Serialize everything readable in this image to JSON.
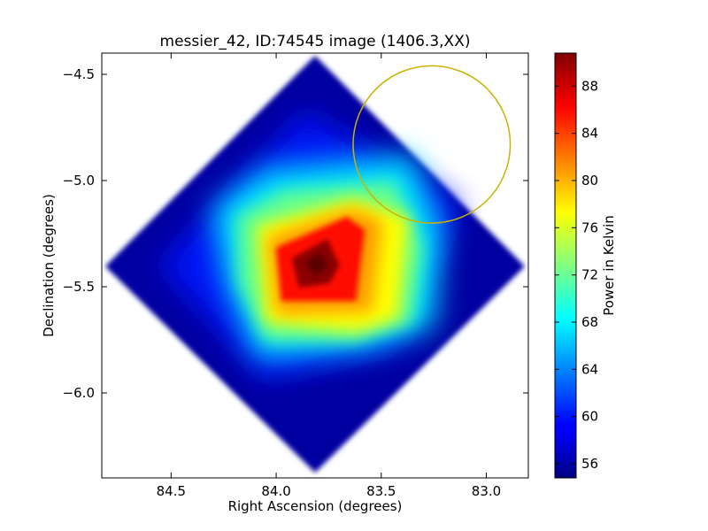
{
  "chart_data": {
    "type": "heatmap",
    "title": "messier_42, ID:74545 image (1406.3,XX)",
    "xlabel": "Right Ascension (degrees)",
    "ylabel": "Declination (degrees)",
    "xlim": [
      84.83,
      82.8
    ],
    "ylim": [
      -6.4,
      -4.4
    ],
    "x_ticks": [
      84.5,
      84.0,
      83.5,
      83.0
    ],
    "x_tick_labels": [
      "84.5",
      "84.0",
      "83.5",
      "83.0"
    ],
    "y_ticks": [
      -4.5,
      -5.0,
      -5.5,
      -6.0
    ],
    "y_tick_labels": [
      "−4.5",
      "−5.0",
      "−5.5",
      "−6.0"
    ],
    "map": {
      "shape": "diamond",
      "extent_ra": [
        84.83,
        82.83
      ],
      "extent_dec": [
        -6.37,
        -4.41
      ],
      "center": {
        "ra": 83.83,
        "dec": -5.39
      },
      "peak": {
        "ra": 83.82,
        "dec": -5.38,
        "value": 90.5
      },
      "background_value": 55.5
    },
    "annotations": [
      {
        "type": "circle",
        "center": {
          "ra": 83.26,
          "dec": -4.83
        },
        "radius_dec": 0.37,
        "color": "#c8b400"
      }
    ],
    "colorbar": {
      "label": "Power in Kelvin",
      "range": [
        54.8,
        90.8
      ],
      "ticks": [
        56,
        60,
        64,
        68,
        72,
        76,
        80,
        84,
        88
      ],
      "tick_labels": [
        "56",
        "60",
        "64",
        "68",
        "72",
        "76",
        "80",
        "84",
        "88"
      ],
      "colormap": "jet"
    }
  }
}
